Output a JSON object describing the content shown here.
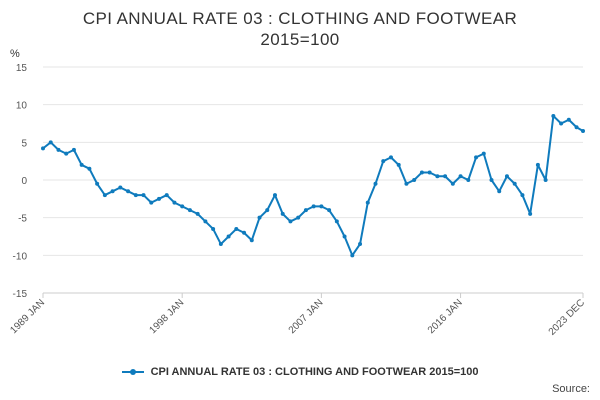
{
  "title_line1": "CPI ANNUAL RATE 03 : CLOTHING AND FOOTWEAR",
  "title_line2": "2015=100",
  "legend_label": "CPI ANNUAL RATE 03 : CLOTHING AND FOOTWEAR 2015=100",
  "source_label": "Source:",
  "colors": {
    "series": "#0f7bbd",
    "grid": "#e6e6e6",
    "axis": "#cccccc"
  },
  "chart_data": {
    "type": "line",
    "title": "CPI ANNUAL RATE 03 : CLOTHING AND FOOTWEAR 2015=100",
    "ylabel": "%",
    "ylim": [
      -15,
      15
    ],
    "y_ticks": [
      "15",
      "10",
      "5",
      "0",
      "-5",
      "-10",
      "-15"
    ],
    "x_tick_labels": [
      "1989 JAN",
      "1998 JAN",
      "2007 JAN",
      "2016 JAN",
      "2023 DEC"
    ],
    "x_range": [
      "1989 JAN",
      "2023 DEC"
    ],
    "grid": true,
    "legend_position": "bottom",
    "series": [
      {
        "name": "CPI ANNUAL RATE 03 : CLOTHING AND FOOTWEAR 2015=100",
        "x": [
          "1989-01",
          "1989-07",
          "1990-01",
          "1990-07",
          "1991-01",
          "1991-07",
          "1992-01",
          "1992-07",
          "1993-01",
          "1993-07",
          "1994-01",
          "1994-07",
          "1995-01",
          "1995-07",
          "1996-01",
          "1996-07",
          "1997-01",
          "1997-07",
          "1998-01",
          "1998-07",
          "1999-01",
          "1999-07",
          "2000-01",
          "2000-07",
          "2001-01",
          "2001-07",
          "2002-01",
          "2002-07",
          "2003-01",
          "2003-07",
          "2004-01",
          "2004-07",
          "2005-01",
          "2005-07",
          "2006-01",
          "2006-07",
          "2007-01",
          "2007-07",
          "2008-01",
          "2008-07",
          "2009-01",
          "2009-07",
          "2010-01",
          "2010-07",
          "2011-01",
          "2011-07",
          "2012-01",
          "2012-07",
          "2013-01",
          "2013-07",
          "2014-01",
          "2014-07",
          "2015-01",
          "2015-07",
          "2016-01",
          "2016-07",
          "2017-01",
          "2017-07",
          "2018-01",
          "2018-07",
          "2019-01",
          "2019-07",
          "2020-01",
          "2020-07",
          "2021-01",
          "2021-07",
          "2022-01",
          "2022-07",
          "2023-01",
          "2023-07",
          "2023-12"
        ],
        "values": [
          4.2,
          5.0,
          4.0,
          3.5,
          4.0,
          2.0,
          1.5,
          -0.5,
          -2.0,
          -1.5,
          -1.0,
          -1.5,
          -2.0,
          -2.0,
          -3.0,
          -2.5,
          -2.0,
          -3.0,
          -3.5,
          -4.0,
          -4.5,
          -5.5,
          -6.5,
          -8.5,
          -7.5,
          -6.5,
          -7.0,
          -8.0,
          -5.0,
          -4.0,
          -2.0,
          -4.5,
          -5.5,
          -5.0,
          -4.0,
          -3.5,
          -3.5,
          -4.0,
          -5.5,
          -7.5,
          -10.0,
          -8.5,
          -3.0,
          -0.5,
          2.5,
          3.0,
          2.0,
          -0.5,
          0.0,
          1.0,
          1.0,
          0.5,
          0.5,
          -0.5,
          0.5,
          0.0,
          3.0,
          3.5,
          0.0,
          -1.5,
          0.5,
          -0.5,
          -2.0,
          -4.5,
          2.0,
          0.0,
          8.5,
          7.5,
          8.0,
          7.0,
          6.5
        ]
      }
    ]
  }
}
